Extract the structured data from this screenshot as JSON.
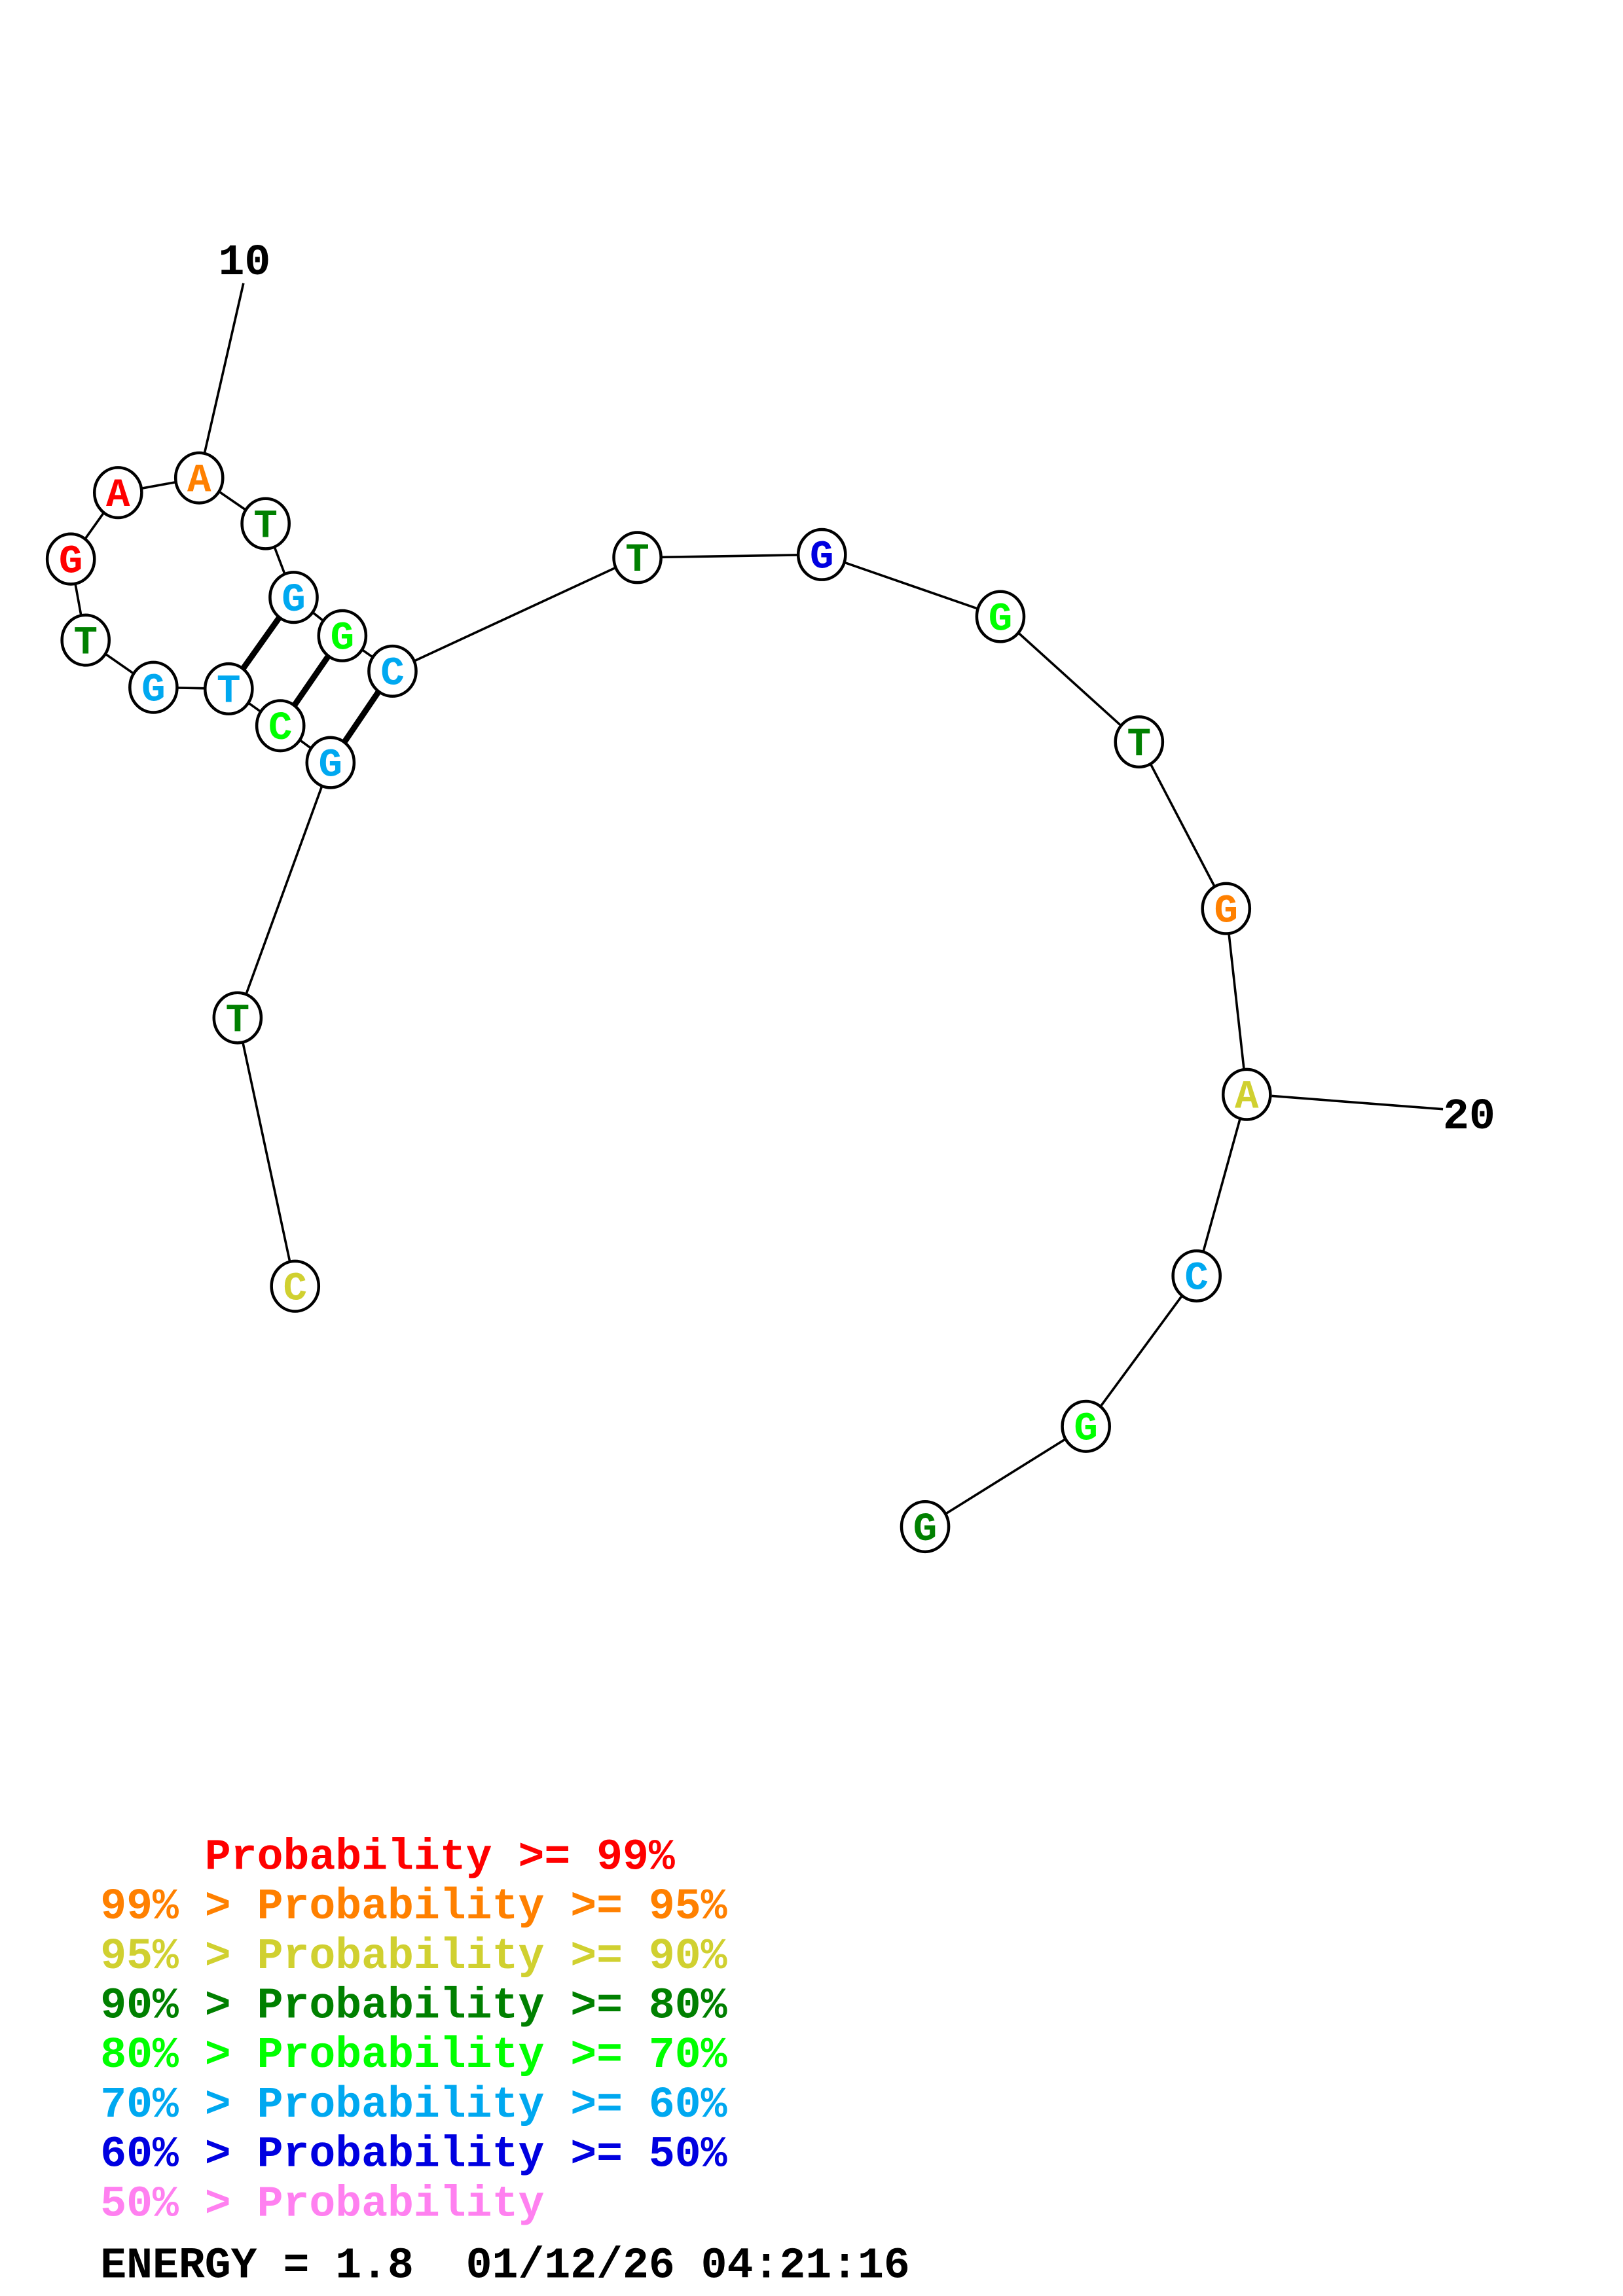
{
  "structure": {
    "sequence": [
      "C",
      "T",
      "G",
      "C",
      "T",
      "G",
      "T",
      "G",
      "A",
      "A",
      "T",
      "G",
      "G",
      "C",
      "T",
      "G",
      "G",
      "T",
      "G",
      "A",
      "C",
      "G",
      "G"
    ],
    "probability_class": [
      "p90",
      "p80",
      "p60",
      "p70",
      "p60",
      "p60",
      "p80",
      "p99",
      "p99",
      "p95",
      "p80",
      "p60",
      "p70",
      "p60",
      "p80",
      "p50",
      "p70",
      "p80",
      "p95",
      "p90",
      "p60",
      "p70",
      "p80"
    ],
    "base_pairs": [
      [
        5,
        12
      ],
      [
        4,
        13
      ],
      [
        3,
        14
      ]
    ],
    "position_labels": [
      {
        "position": 10,
        "text": "10"
      },
      {
        "position": 20,
        "text": "20"
      }
    ]
  },
  "colors": {
    "p99": "#ff0000",
    "p95": "#ff8000",
    "p90": "#d0d030",
    "p80": "#008000",
    "p70": "#00ff00",
    "p60": "#00a8f0",
    "p50": "#0000e0",
    "plow": "#ff80f0"
  },
  "legend": [
    {
      "text": "    Probability >= 99%",
      "color_key": "p99"
    },
    {
      "text": "99% > Probability >= 95%",
      "color_key": "p95"
    },
    {
      "text": "95% > Probability >= 90%",
      "color_key": "p90"
    },
    {
      "text": "90% > Probability >= 80%",
      "color_key": "p80"
    },
    {
      "text": "80% > Probability >= 70%",
      "color_key": "p70"
    },
    {
      "text": "70% > Probability >= 60%",
      "color_key": "p60"
    },
    {
      "text": "60% > Probability >= 50%",
      "color_key": "p50"
    },
    {
      "text": "50% > Probability",
      "color_key": "plow"
    }
  ],
  "footer": {
    "energy": "ENERGY = 1.8  01/12/26 04:21:16"
  }
}
